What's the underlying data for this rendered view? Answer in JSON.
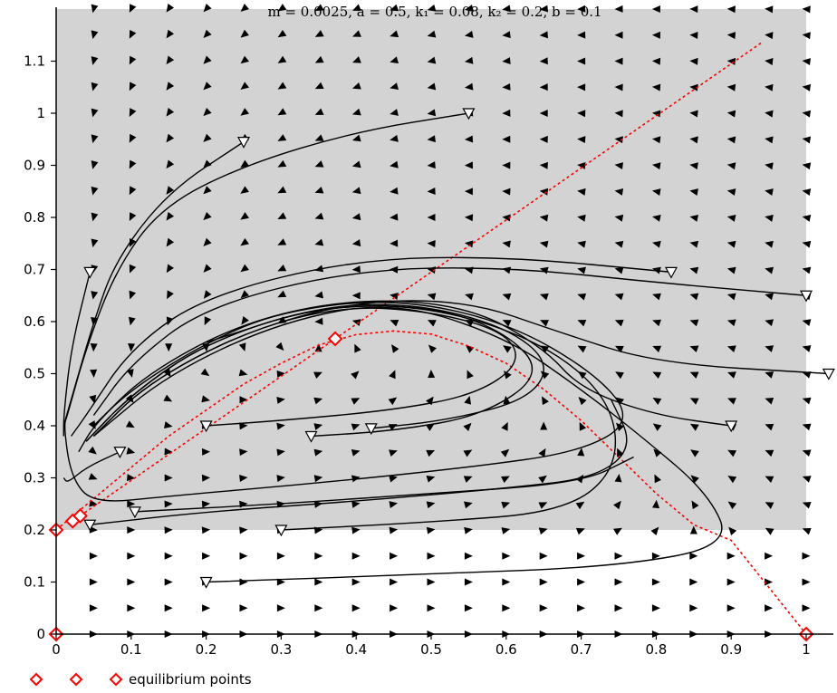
{
  "chart_data": {
    "type": "phase-portrait",
    "title": "m = 0.0025,  a = 0.5,  k₁ = 0.08,  k₂ = 0.2,  b = 0.1",
    "params": {
      "m": 0.0025,
      "a": 0.5,
      "k1": 0.08,
      "k2": 0.2,
      "b": 0.1
    },
    "xlim": [
      0,
      1.03
    ],
    "ylim": [
      0,
      1.2
    ],
    "x_ticks": [
      "0",
      "0.1",
      "0.2",
      "0.3",
      "0.4",
      "0.5",
      "0.6",
      "0.7",
      "0.8",
      "0.9",
      "1"
    ],
    "y_ticks": [
      "0",
      "0.1",
      "0.2",
      "0.3",
      "0.4",
      "0.5",
      "0.6",
      "0.7",
      "0.8",
      "0.9",
      "1",
      "1.1"
    ],
    "x_tick_values": [
      0,
      0.1,
      0.2,
      0.3,
      0.4,
      0.5,
      0.6,
      0.7,
      0.8,
      0.9,
      1
    ],
    "y_tick_values": [
      0,
      0.1,
      0.2,
      0.3,
      0.4,
      0.5,
      0.6,
      0.7,
      0.8,
      0.9,
      1,
      1.1
    ],
    "shaded_region": {
      "x": [
        0,
        1
      ],
      "y": [
        0.2,
        1.2
      ]
    },
    "equilibrium_points": [
      {
        "x": 0,
        "y": 0
      },
      {
        "x": 1,
        "y": 0
      },
      {
        "x": 0,
        "y": 0.2
      },
      {
        "x": 0.022,
        "y": 0.217
      },
      {
        "x": 0.032,
        "y": 0.227
      },
      {
        "x": 0.372,
        "y": 0.567
      }
    ],
    "nullclines": [
      {
        "kind": "parabola",
        "points": [
          [
            0,
            0.2
          ],
          [
            0.05,
            0.26
          ],
          [
            0.1,
            0.32
          ],
          [
            0.15,
            0.38
          ],
          [
            0.2,
            0.43
          ],
          [
            0.25,
            0.48
          ],
          [
            0.3,
            0.52
          ],
          [
            0.35,
            0.555
          ],
          [
            0.4,
            0.575
          ],
          [
            0.45,
            0.582
          ],
          [
            0.5,
            0.576
          ],
          [
            0.55,
            0.553
          ],
          [
            0.6,
            0.52
          ],
          [
            0.65,
            0.47
          ],
          [
            0.7,
            0.41
          ],
          [
            0.75,
            0.34
          ],
          [
            0.8,
            0.27
          ],
          [
            0.85,
            0.21
          ],
          [
            0.9,
            0.18
          ],
          [
            0.95,
            0.09
          ],
          [
            1,
            0
          ]
        ]
      },
      {
        "kind": "line",
        "points": [
          [
            0.032,
            0.227
          ],
          [
            0.372,
            0.567
          ],
          [
            0.94,
            1.135
          ]
        ]
      }
    ],
    "trajectories": [
      {
        "start": [
          0.55,
          1.0
        ],
        "points": [
          [
            0.55,
            1.0
          ],
          [
            0.4,
            0.965
          ],
          [
            0.25,
            0.9
          ],
          [
            0.14,
            0.82
          ],
          [
            0.08,
            0.7
          ],
          [
            0.04,
            0.55
          ],
          [
            0.015,
            0.42
          ],
          [
            0.01,
            0.4
          ],
          [
            0.02,
            0.3
          ],
          [
            0.05,
            0.25
          ],
          [
            0.15,
            0.265
          ],
          [
            0.35,
            0.29
          ],
          [
            0.55,
            0.32
          ],
          [
            0.7,
            0.35
          ],
          [
            0.77,
            0.41
          ],
          [
            0.72,
            0.5
          ],
          [
            0.6,
            0.6
          ],
          [
            0.45,
            0.645
          ],
          [
            0.3,
            0.62
          ],
          [
            0.2,
            0.56
          ],
          [
            0.1,
            0.47
          ],
          [
            0.05,
            0.4
          ],
          [
            0.03,
            0.35
          ]
        ]
      },
      {
        "start": [
          0.25,
          0.945
        ],
        "points": [
          [
            0.25,
            0.945
          ],
          [
            0.15,
            0.85
          ],
          [
            0.08,
            0.72
          ],
          [
            0.05,
            0.6
          ],
          [
            0.02,
            0.45
          ],
          [
            0.01,
            0.4
          ]
        ]
      },
      {
        "start": [
          0.045,
          0.695
        ],
        "points": [
          [
            0.045,
            0.695
          ],
          [
            0.02,
            0.55
          ],
          [
            0.01,
            0.42
          ],
          [
            0.01,
            0.38
          ]
        ]
      },
      {
        "start": [
          0.82,
          0.695
        ],
        "points": [
          [
            0.82,
            0.695
          ],
          [
            0.6,
            0.725
          ],
          [
            0.4,
            0.72
          ],
          [
            0.2,
            0.65
          ],
          [
            0.1,
            0.55
          ],
          [
            0.04,
            0.42
          ],
          [
            0.02,
            0.38
          ]
        ]
      },
      {
        "start": [
          1.0,
          0.65
        ],
        "points": [
          [
            1.0,
            0.65
          ],
          [
            0.8,
            0.675
          ],
          [
            0.6,
            0.705
          ],
          [
            0.4,
            0.7
          ],
          [
            0.2,
            0.63
          ],
          [
            0.1,
            0.52
          ],
          [
            0.05,
            0.42
          ]
        ]
      },
      {
        "start": [
          1.03,
          0.5
        ],
        "points": [
          [
            1.03,
            0.5
          ],
          [
            0.8,
            0.52
          ],
          [
            0.67,
            0.58
          ],
          [
            0.55,
            0.64
          ],
          [
            0.4,
            0.64
          ],
          [
            0.25,
            0.58
          ],
          [
            0.12,
            0.48
          ],
          [
            0.05,
            0.38
          ]
        ]
      },
      {
        "start": [
          0.9,
          0.4
        ],
        "points": [
          [
            0.9,
            0.4
          ],
          [
            0.8,
            0.42
          ],
          [
            0.7,
            0.47
          ],
          [
            0.65,
            0.55
          ],
          [
            0.55,
            0.63
          ],
          [
            0.4,
            0.645
          ],
          [
            0.25,
            0.6
          ],
          [
            0.12,
            0.5
          ],
          [
            0.05,
            0.4
          ]
        ]
      },
      {
        "start": [
          0.2,
          0.4
        ],
        "points": [
          [
            0.2,
            0.4
          ],
          [
            0.3,
            0.41
          ],
          [
            0.45,
            0.43
          ],
          [
            0.56,
            0.46
          ],
          [
            0.62,
            0.52
          ],
          [
            0.6,
            0.58
          ],
          [
            0.5,
            0.62
          ],
          [
            0.38,
            0.63
          ],
          [
            0.25,
            0.58
          ],
          [
            0.12,
            0.48
          ],
          [
            0.05,
            0.38
          ]
        ]
      },
      {
        "start": [
          0.34,
          0.38
        ],
        "points": [
          [
            0.34,
            0.38
          ],
          [
            0.45,
            0.39
          ],
          [
            0.57,
            0.42
          ],
          [
            0.65,
            0.5
          ],
          [
            0.6,
            0.58
          ],
          [
            0.5,
            0.63
          ],
          [
            0.35,
            0.63
          ],
          [
            0.2,
            0.56
          ],
          [
            0.1,
            0.46
          ],
          [
            0.04,
            0.37
          ]
        ]
      },
      {
        "start": [
          0.42,
          0.395
        ],
        "points": [
          [
            0.42,
            0.395
          ],
          [
            0.52,
            0.41
          ],
          [
            0.63,
            0.45
          ],
          [
            0.66,
            0.52
          ],
          [
            0.6,
            0.59
          ],
          [
            0.48,
            0.635
          ],
          [
            0.35,
            0.63
          ],
          [
            0.2,
            0.56
          ],
          [
            0.1,
            0.46
          ],
          [
            0.04,
            0.37
          ]
        ]
      },
      {
        "start": [
          0.3,
          0.2
        ],
        "points": [
          [
            0.3,
            0.2
          ],
          [
            0.5,
            0.215
          ],
          [
            0.68,
            0.235
          ],
          [
            0.75,
            0.32
          ],
          [
            0.74,
            0.45
          ],
          [
            0.65,
            0.56
          ],
          [
            0.5,
            0.63
          ],
          [
            0.35,
            0.63
          ],
          [
            0.2,
            0.56
          ]
        ]
      },
      {
        "start": [
          0.2,
          0.1
        ],
        "points": [
          [
            0.2,
            0.1
          ],
          [
            0.5,
            0.115
          ],
          [
            0.75,
            0.13
          ],
          [
            0.9,
            0.17
          ],
          [
            0.87,
            0.27
          ],
          [
            0.78,
            0.38
          ],
          [
            0.7,
            0.47
          ],
          [
            0.6,
            0.57
          ],
          [
            0.45,
            0.64
          ],
          [
            0.3,
            0.6
          ],
          [
            0.15,
            0.5
          ],
          [
            0.05,
            0.38
          ]
        ]
      },
      {
        "start": [
          0.085,
          0.35
        ],
        "points": [
          [
            0.085,
            0.35
          ],
          [
            0.04,
            0.32
          ],
          [
            0.015,
            0.29
          ],
          [
            0.01,
            0.3
          ]
        ]
      },
      {
        "start": [
          0.045,
          0.21
        ],
        "points": [
          [
            0.045,
            0.21
          ],
          [
            0.2,
            0.235
          ],
          [
            0.4,
            0.255
          ],
          [
            0.6,
            0.28
          ],
          [
            0.72,
            0.3
          ],
          [
            0.77,
            0.36
          ],
          [
            0.74,
            0.45
          ]
        ]
      },
      {
        "start": [
          0.105,
          0.235
        ],
        "points": [
          [
            0.105,
            0.235
          ],
          [
            0.3,
            0.25
          ],
          [
            0.5,
            0.27
          ],
          [
            0.7,
            0.29
          ],
          [
            0.77,
            0.34
          ]
        ]
      }
    ]
  },
  "legend": {
    "label": "equilibrium points"
  }
}
